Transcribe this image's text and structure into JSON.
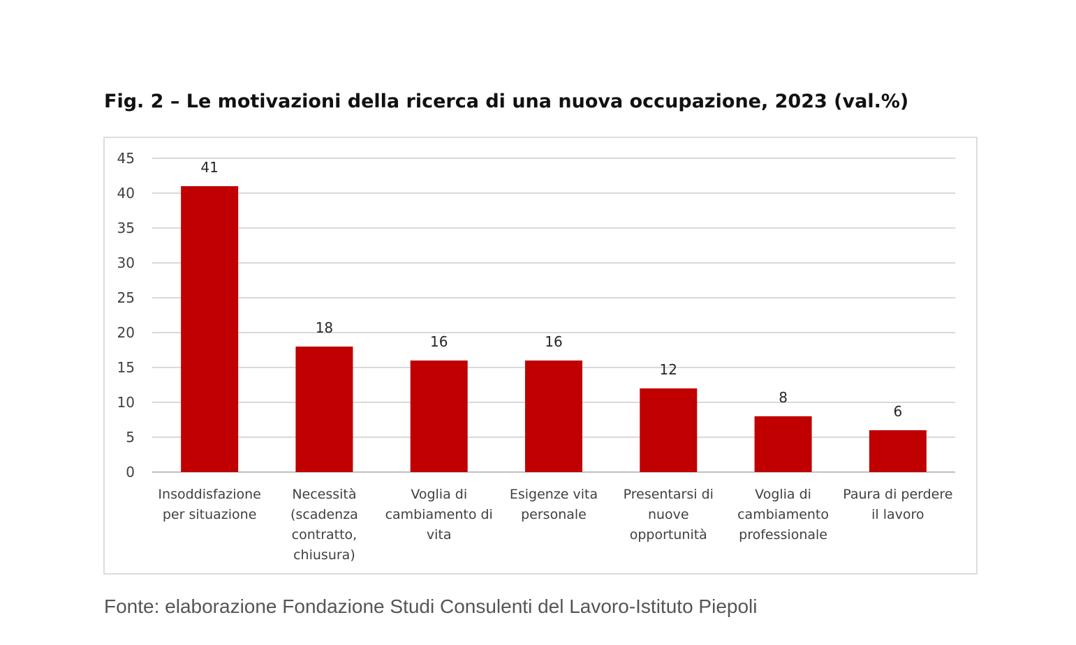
{
  "title": "Fig. 2 – Le motivazioni della ricerca di una nuova occupazione, 2023 (val.%)",
  "source": "Fonte: elaborazione Fondazione Studi Consulenti del Lavoro-Istituto Piepoli",
  "colors": {
    "bar": "#c00000",
    "grid": "#d9d9d9",
    "axis": "#bfbfbf"
  },
  "chart_data": {
    "type": "bar",
    "title": "Fig. 2 – Le motivazioni della ricerca di una nuova occupazione, 2023 (val.%)",
    "categories": [
      [
        "Insoddisfazione",
        "per situazione"
      ],
      [
        "Necessità",
        "(scadenza",
        "contratto,",
        "chiusura)"
      ],
      [
        "Voglia di",
        "cambiamento di",
        "vita"
      ],
      [
        "Esigenze vita",
        "personale"
      ],
      [
        "Presentarsi di",
        "nuove",
        "opportunità"
      ],
      [
        "Voglia di",
        "cambiamento",
        "professionale"
      ],
      [
        "Paura di perdere",
        "il lavoro"
      ]
    ],
    "values": [
      41,
      18,
      16,
      16,
      12,
      8,
      6
    ],
    "data_labels": [
      "41",
      "18",
      "16",
      "16",
      "12",
      "8",
      "6"
    ],
    "ylim": [
      0,
      45
    ],
    "yticks": [
      0,
      5,
      10,
      15,
      20,
      25,
      30,
      35,
      40,
      45
    ],
    "grid": true,
    "legend": "none"
  }
}
